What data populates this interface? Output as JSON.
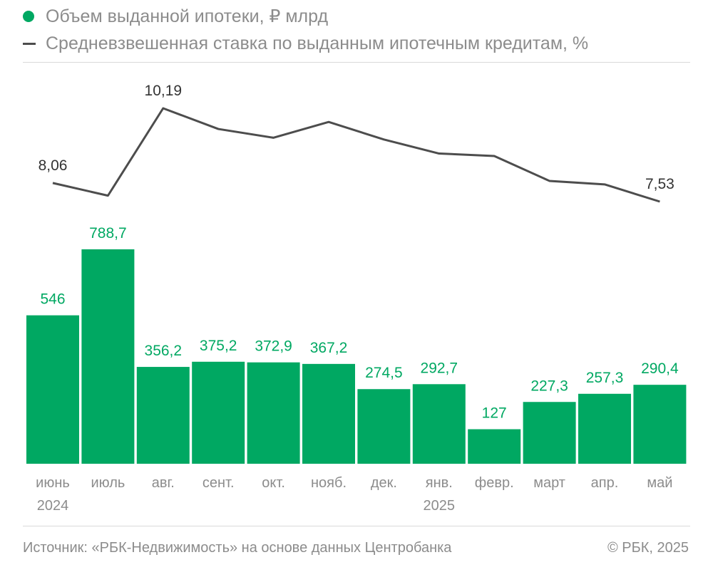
{
  "legend": {
    "bars_label": "Объем выданной ипотеки, ₽ млрд",
    "line_label": "Средневзвешенная ставка по выданным ипотечным кредитам, %"
  },
  "colors": {
    "bar": "#00a862",
    "line": "#4d4d4d",
    "bar_label": "#00a862",
    "text": "#8c8c8c"
  },
  "chart_data": {
    "type": "bar",
    "title": "",
    "categories": [
      "июнь",
      "июль",
      "авг.",
      "сент.",
      "окт.",
      "нояб.",
      "дек.",
      "янв.",
      "февр.",
      "март",
      "апр.",
      "май"
    ],
    "year_labels": [
      "2024",
      "",
      "",
      "",
      "",
      "",
      "",
      "2025",
      "",
      "",
      "",
      ""
    ],
    "series": [
      {
        "name": "Объем выданной ипотеки, ₽ млрд",
        "type": "bar",
        "values": [
          546,
          788.7,
          356.2,
          375.2,
          372.9,
          367.2,
          274.5,
          292.7,
          127,
          227.3,
          257.3,
          290.4
        ],
        "labels": [
          "546",
          "788,7",
          "356,2",
          "375,2",
          "372,9",
          "367,2",
          "274,5",
          "292,7",
          "127",
          "227,3",
          "257,3",
          "290,4"
        ]
      },
      {
        "name": "Средневзвешенная ставка по выданным ипотечным кредитам, %",
        "type": "line",
        "values": [
          8.06,
          7.7,
          10.19,
          9.6,
          9.35,
          9.8,
          9.3,
          8.9,
          8.83,
          8.12,
          8.02,
          7.53
        ],
        "labels": [
          "8,06",
          "",
          "10,19",
          "",
          "",
          "",
          "",
          "",
          "",
          "",
          "",
          "7,53"
        ]
      }
    ],
    "xlabel": "",
    "ylabel": "",
    "ylim": [
      0,
      820
    ]
  },
  "footer": {
    "source": "Источник: «РБК-Недвижимость» на основе данных Центробанка",
    "copyright": "© РБК, 2025"
  }
}
